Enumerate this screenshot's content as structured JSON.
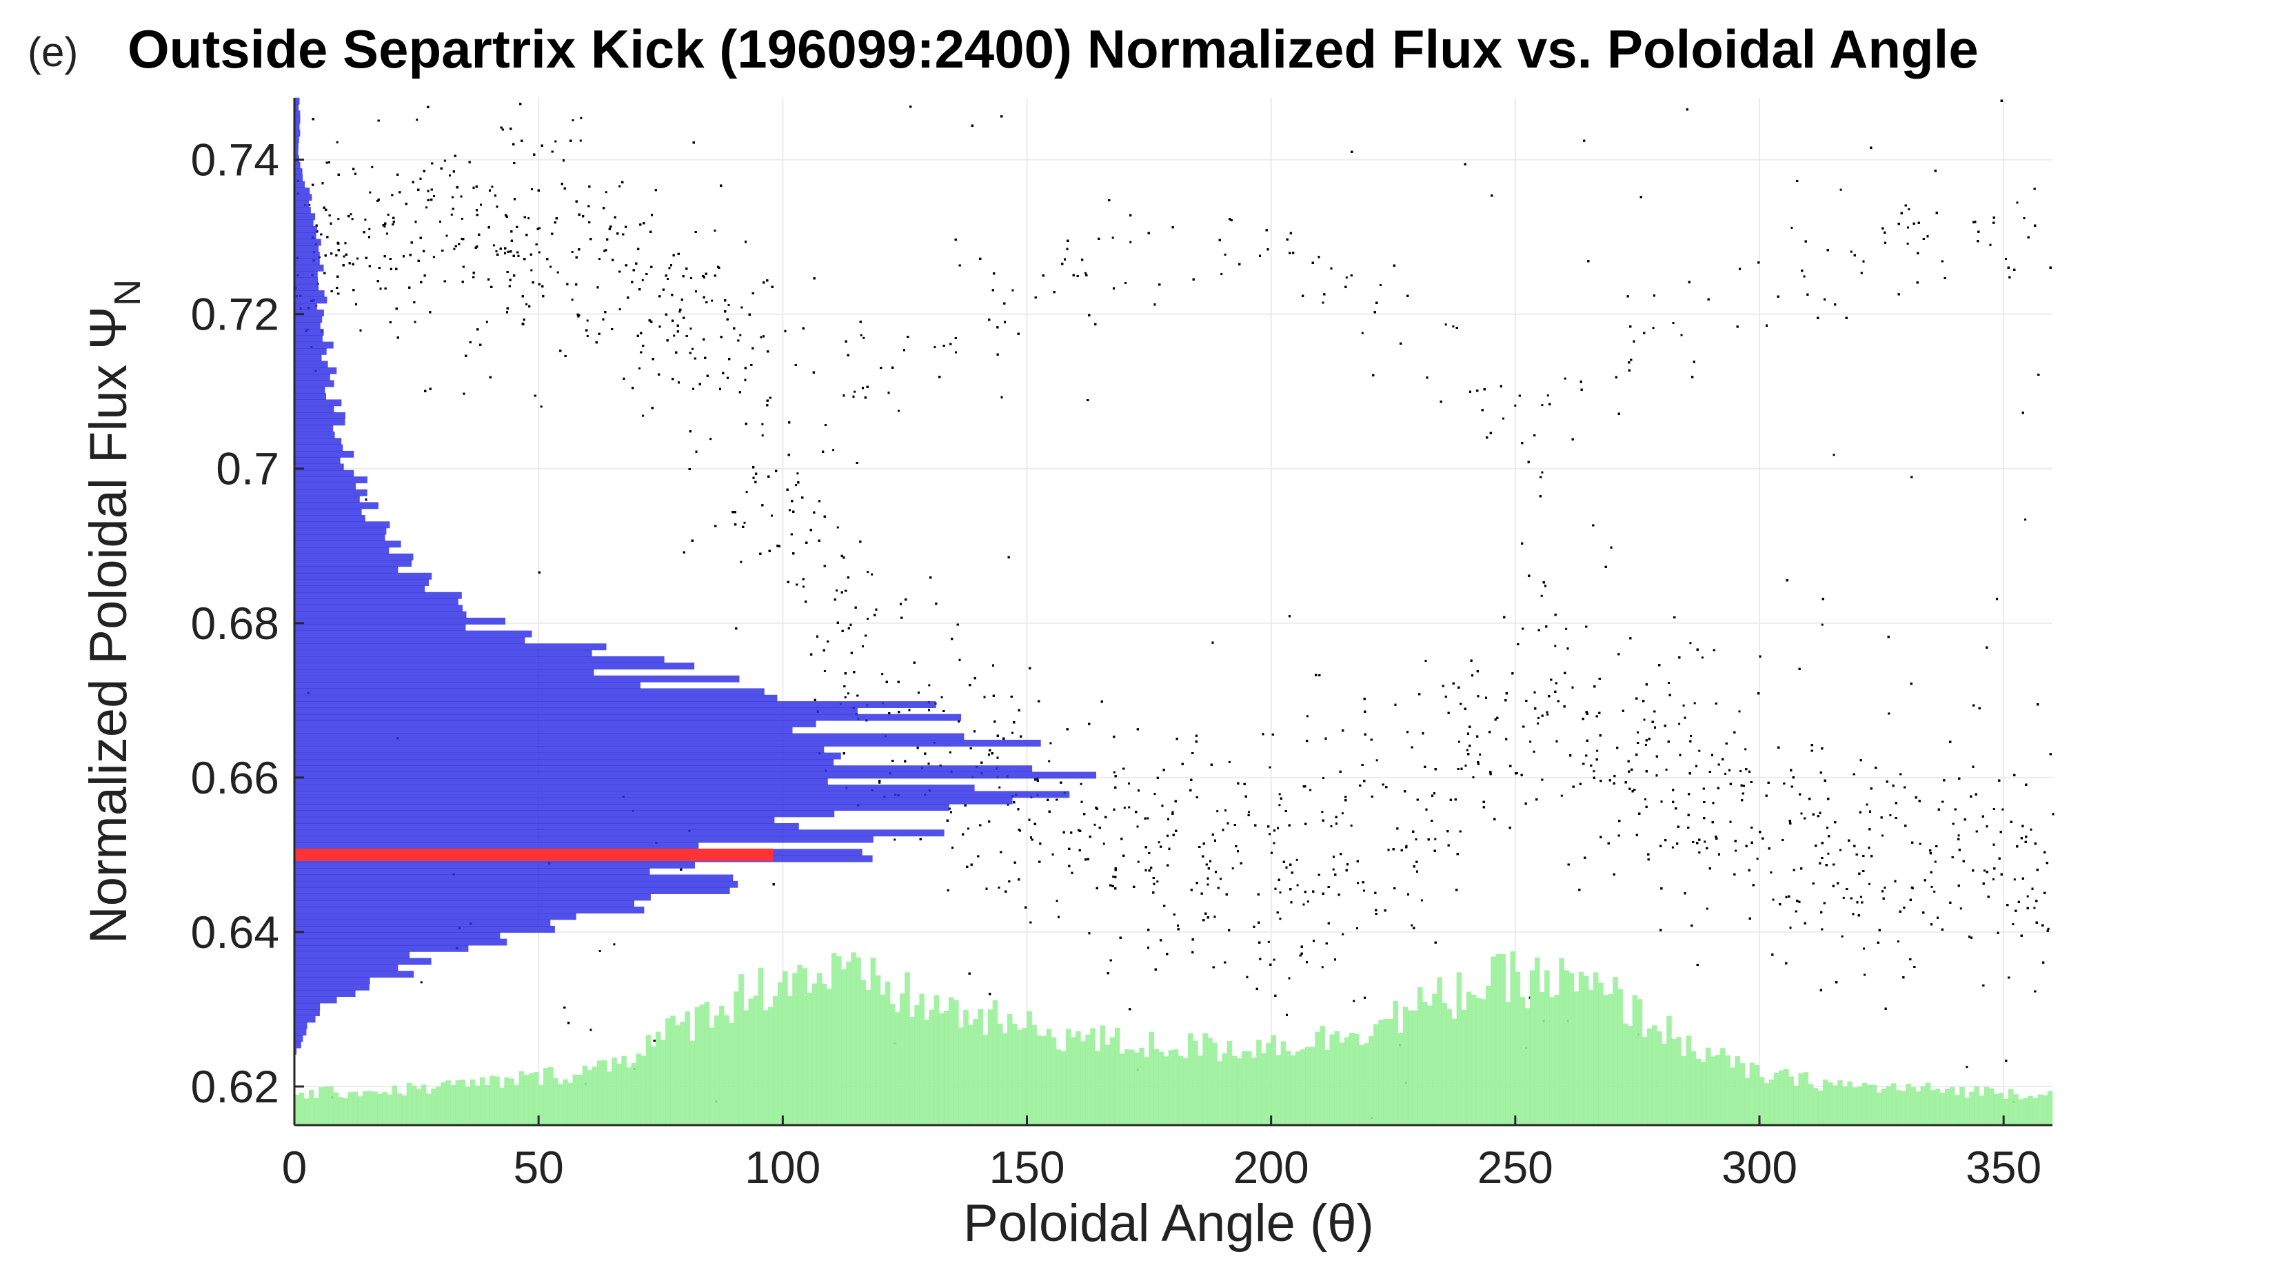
{
  "panel_label": "(e)",
  "title": "Outside Separtrix Kick (196099:2400) Normalized Flux vs. Poloidal Angle",
  "chart_data": {
    "type": "scatter",
    "title": "Outside Separtrix Kick (196099:2400) Normalized Flux vs. Poloidal Angle",
    "xlabel": "Poloidal Angle (θ)",
    "ylabel": "Normalized Poloidal Flux Ψ",
    "ylabel_subscript": "N",
    "xlim": [
      0,
      360
    ],
    "ylim": [
      0.615,
      0.748
    ],
    "x_ticks": [
      0,
      50,
      100,
      150,
      200,
      250,
      300,
      350
    ],
    "y_ticks": [
      0.62,
      0.64,
      0.66,
      0.68,
      0.7,
      0.72,
      0.74
    ],
    "x_tick_labels": [
      "0",
      "50",
      "100",
      "150",
      "200",
      "250",
      "300",
      "350"
    ],
    "y_tick_labels": [
      "0.62",
      "0.64",
      "0.66",
      "0.68",
      "0.7",
      "0.72",
      "0.74"
    ],
    "grid": true,
    "colors": {
      "scatter": "#000000",
      "psi_histogram": "#3333e6",
      "theta_histogram": "#99f099",
      "marker_line": "#ff3333"
    },
    "scatter_density_profile": {
      "theta": [
        0,
        30,
        60,
        80,
        100,
        110,
        120,
        140,
        150,
        170,
        200,
        230,
        240,
        255,
        270,
        290,
        320,
        360
      ],
      "psi_center": [
        0.73,
        0.73,
        0.729,
        0.72,
        0.7,
        0.68,
        0.67,
        0.66,
        0.655,
        0.65,
        0.648,
        0.655,
        0.665,
        0.672,
        0.665,
        0.655,
        0.65,
        0.65
      ],
      "upper_branch_center": [
        0.73,
        0.73,
        0.729,
        0.724,
        0.718,
        0.712,
        0.715,
        0.72,
        0.722,
        0.728,
        0.73,
        0.72,
        0.712,
        0.705,
        0.712,
        0.722,
        0.728,
        0.73
      ]
    },
    "psi_histogram": {
      "psi": [
        0.624,
        0.63,
        0.636,
        0.642,
        0.646,
        0.65,
        0.654,
        0.658,
        0.662,
        0.666,
        0.67,
        0.674,
        0.678,
        0.684,
        0.69,
        0.7,
        0.71,
        0.72,
        0.73,
        0.74
      ],
      "length_theta": [
        0,
        5,
        25,
        55,
        80,
        100,
        120,
        135,
        140,
        128,
        105,
        75,
        45,
        30,
        20,
        12,
        8,
        6,
        5,
        1
      ]
    },
    "theta_histogram": {
      "theta": [
        0,
        20,
        40,
        60,
        70,
        80,
        90,
        100,
        110,
        120,
        130,
        150,
        170,
        190,
        210,
        230,
        240,
        250,
        260,
        270,
        280,
        290,
        300,
        320,
        340,
        360
      ],
      "height_psi": [
        0.619,
        0.6195,
        0.6205,
        0.622,
        0.6245,
        0.628,
        0.6315,
        0.634,
        0.6345,
        0.633,
        0.6305,
        0.6275,
        0.6255,
        0.625,
        0.626,
        0.63,
        0.6325,
        0.634,
        0.6335,
        0.6315,
        0.6275,
        0.624,
        0.6215,
        0.62,
        0.6195,
        0.619
      ]
    },
    "marker_line": {
      "psi": 0.65,
      "theta_from": 0,
      "theta_to": 98
    }
  }
}
